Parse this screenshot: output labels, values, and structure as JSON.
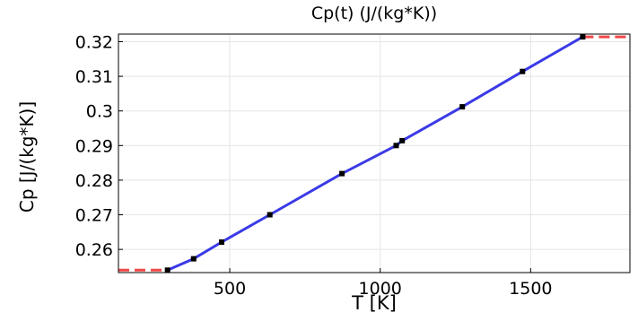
{
  "chart_data": {
    "type": "line",
    "title": "Cp(t) (J/(kg*K))",
    "xlabel": "T [K]",
    "ylabel": "Cp [J/(kg*K)]",
    "xlim": [
      130,
      1830
    ],
    "ylim": [
      0.2533,
      0.3222
    ],
    "xticks": [
      500,
      1000,
      1500
    ],
    "xtick_labels": [
      "500",
      "1000",
      "1500"
    ],
    "yticks": [
      0.26,
      0.27,
      0.28,
      0.29,
      0.3,
      0.31,
      0.32
    ],
    "ytick_labels": [
      "0.26",
      "0.27",
      "0.28",
      "0.29",
      "0.3",
      "0.31",
      "0.32"
    ],
    "grid": true,
    "series": [
      {
        "color": "#3a3ae8",
        "style": "solid",
        "x": [
          293,
          380,
          473,
          633,
          873,
          1053,
          1073,
          1273,
          1473,
          1673
        ],
        "y": [
          0.254,
          0.2573,
          0.2621,
          0.27,
          0.2819,
          0.29,
          0.2914,
          0.3012,
          0.3114,
          0.3214
        ]
      },
      {
        "color": "#f04848",
        "style": "dashed",
        "x": [
          130,
          293
        ],
        "y": [
          0.254,
          0.254
        ]
      },
      {
        "color": "#f04848",
        "style": "dashed",
        "x": [
          1673,
          1830
        ],
        "y": [
          0.3214,
          0.3214
        ]
      }
    ],
    "points": {
      "color": "#000000",
      "x": [
        293,
        380,
        473,
        633,
        873,
        1053,
        1073,
        1273,
        1473,
        1673
      ],
      "y": [
        0.254,
        0.2573,
        0.2621,
        0.27,
        0.2819,
        0.29,
        0.2914,
        0.3012,
        0.3114,
        0.3214
      ]
    }
  }
}
